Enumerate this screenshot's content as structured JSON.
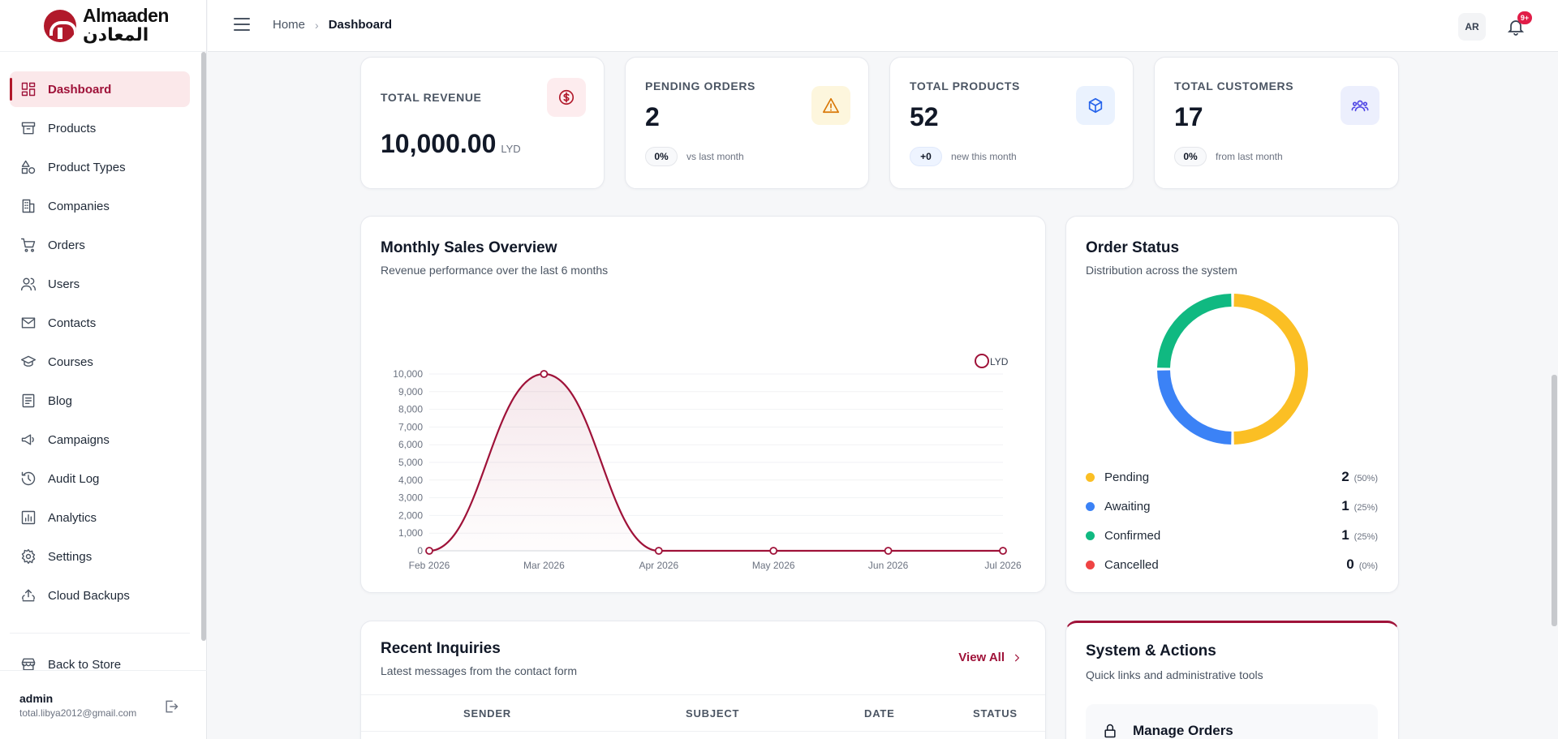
{
  "brand": {
    "name_en": "Almaaden",
    "name_ar": "المعادن"
  },
  "sidebar": {
    "items": [
      {
        "label": "Dashboard",
        "icon": "dashboard-icon"
      },
      {
        "label": "Products",
        "icon": "archive-icon"
      },
      {
        "label": "Product Types",
        "icon": "shapes-icon"
      },
      {
        "label": "Companies",
        "icon": "building-icon"
      },
      {
        "label": "Orders",
        "icon": "cart-icon"
      },
      {
        "label": "Users",
        "icon": "users-icon"
      },
      {
        "label": "Contacts",
        "icon": "mail-icon"
      },
      {
        "label": "Courses",
        "icon": "graduation-cap-icon"
      },
      {
        "label": "Blog",
        "icon": "document-icon"
      },
      {
        "label": "Campaigns",
        "icon": "megaphone-icon"
      },
      {
        "label": "Audit Log",
        "icon": "history-icon"
      },
      {
        "label": "Analytics",
        "icon": "bar-chart-icon"
      },
      {
        "label": "Settings",
        "icon": "gear-icon"
      },
      {
        "label": "Cloud Backups",
        "icon": "cloud-backup-icon"
      }
    ],
    "back_to_store": "Back to Store",
    "user": {
      "name": "admin",
      "email": "total.libya2012@gmail.com"
    }
  },
  "header": {
    "breadcrumb": {
      "home": "Home",
      "current": "Dashboard"
    },
    "avatar_initials": "AR",
    "notification_badge": "9+"
  },
  "stats": {
    "revenue": {
      "label": "TOTAL REVENUE",
      "value": "10,000.00",
      "unit": "LYD",
      "icon_color": "#b1192b"
    },
    "pending": {
      "label": "PENDING ORDERS",
      "value": "2",
      "pill": "0%",
      "note": "vs last month",
      "icon_color": "#d97706"
    },
    "products": {
      "label": "TOTAL PRODUCTS",
      "value": "52",
      "pill": "+0",
      "note": "new this month",
      "icon_color": "#2563eb"
    },
    "customers": {
      "label": "TOTAL CUSTOMERS",
      "value": "17",
      "pill": "0%",
      "note": "from last month",
      "icon_color": "#4f46e5"
    }
  },
  "sales": {
    "title": "Monthly Sales Overview",
    "subtitle": "Revenue performance over the last 6 months"
  },
  "order_status": {
    "title": "Order Status",
    "subtitle": "Distribution across the system",
    "items": [
      {
        "label": "Pending",
        "count": "2",
        "pct": "(50%)",
        "color": "#fbbf24"
      },
      {
        "label": "Awaiting",
        "count": "1",
        "pct": "(25%)",
        "color": "#3b82f6"
      },
      {
        "label": "Confirmed",
        "count": "1",
        "pct": "(25%)",
        "color": "#10b981"
      },
      {
        "label": "Cancelled",
        "count": "0",
        "pct": "(0%)",
        "color": "#ef4444"
      }
    ]
  },
  "inquiries": {
    "title": "Recent Inquiries",
    "subtitle": "Latest messages from the contact form",
    "view_all": "View All",
    "columns": [
      "SENDER",
      "SUBJECT",
      "DATE",
      "STATUS"
    ]
  },
  "system": {
    "title": "System & Actions",
    "subtitle": "Quick links and administrative tools",
    "first_action": "Manage Orders"
  },
  "chart_data": [
    {
      "type": "line",
      "categories": [
        "Feb 2026",
        "Mar 2026",
        "Apr 2026",
        "May 2026",
        "Jun 2026",
        "Jul 2026"
      ],
      "series": [
        {
          "name": "LYD",
          "values": [
            0,
            10000,
            0,
            0,
            0,
            0
          ],
          "color": "#9f1239"
        }
      ],
      "yticks": [
        "0",
        "1,000",
        "2,000",
        "3,000",
        "4,000",
        "5,000",
        "6,000",
        "7,000",
        "8,000",
        "9,000",
        "10,000"
      ],
      "ylim": [
        0,
        10000
      ],
      "legend": "top-right",
      "grid": true
    },
    {
      "type": "pie",
      "variant": "donut",
      "labels": [
        "Pending",
        "Awaiting",
        "Confirmed",
        "Cancelled"
      ],
      "values": [
        2,
        1,
        1,
        0
      ],
      "colors": [
        "#fbbf24",
        "#3b82f6",
        "#10b981",
        "#ef4444"
      ]
    }
  ]
}
